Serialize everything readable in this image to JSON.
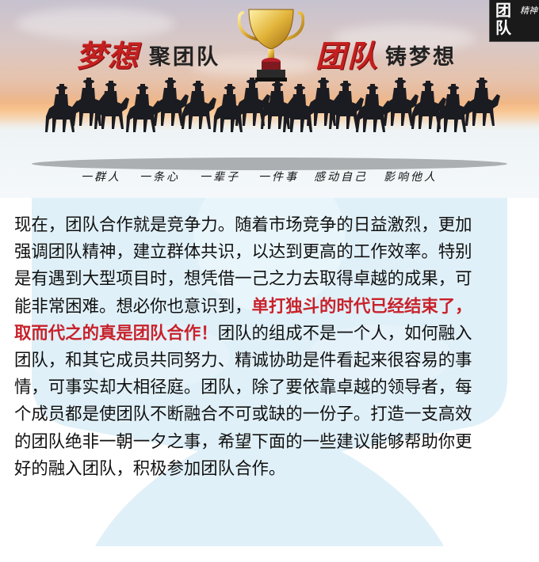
{
  "banner": {
    "title_left_red": "梦想",
    "title_left_black": "聚团队",
    "title_right_red": "团队",
    "title_right_black": "铸梦想",
    "logo": {
      "big": "团队",
      "small": "精神"
    },
    "slogans": [
      "一群人",
      "一条心",
      "一辈子",
      "一件事",
      "感动自己",
      "影响他人"
    ],
    "icons": [
      "trophy-icon",
      "horse-riders-silhouette"
    ]
  },
  "article": {
    "lines": [
      {
        "parts": [
          {
            "t": "现在，团队合作就是竞争力。随着市场竞争的日益激烈，更加",
            "hl": false
          }
        ]
      },
      {
        "parts": [
          {
            "t": "强调团队精神，建立群体共识，以达到更高的工作效率。特别",
            "hl": false
          }
        ]
      },
      {
        "parts": [
          {
            "t": "是有遇到大型项目时，想凭借一己之力去取得卓越的成果，可",
            "hl": false
          }
        ]
      },
      {
        "parts": [
          {
            "t": "能非常困难。想必你也意识到，",
            "hl": false
          },
          {
            "t": "单打独斗的时代已经结束了，",
            "hl": true
          }
        ]
      },
      {
        "parts": [
          {
            "t": "取而代之的真是团队合作！",
            "hl": true
          },
          {
            "t": "团队的组成不是一个人，如何融入",
            "hl": false
          }
        ]
      },
      {
        "parts": [
          {
            "t": "团队，和其它成员共同努力、精诚协助是件看起来很容易的事",
            "hl": false
          }
        ]
      },
      {
        "parts": [
          {
            "t": "情，可事实却大相径庭。团队，除了要依靠卓越的领导者，每",
            "hl": false
          }
        ]
      },
      {
        "parts": [
          {
            "t": "个成员都是使团队不断融合不可或缺的一份子。打造一支高效",
            "hl": false
          }
        ]
      },
      {
        "parts": [
          {
            "t": "的团队绝非一朝一夕之事，希望下面的一些建议能够帮助你更",
            "hl": false
          }
        ]
      },
      {
        "parts": [
          {
            "t": "好的融入团队，积极参加团队合作。",
            "hl": false
          }
        ]
      }
    ]
  },
  "colors": {
    "highlight": "#c8222b",
    "title_red": "#c51f1f",
    "watermark": "#cfe7f3"
  }
}
